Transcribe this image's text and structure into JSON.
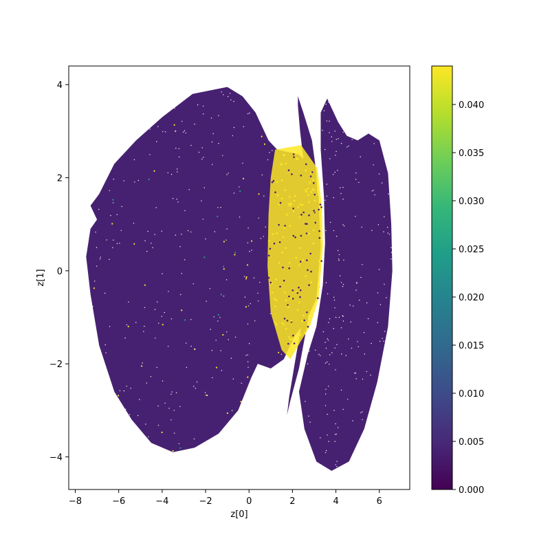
{
  "chart_data": {
    "type": "scatter",
    "title": "",
    "xlabel": "z[0]",
    "ylabel": "z[1]",
    "xlim": [
      -8.3,
      7.4
    ],
    "ylim": [
      -4.7,
      4.4
    ],
    "x_ticks": [
      -8,
      -6,
      -4,
      -2,
      0,
      2,
      4,
      6
    ],
    "y_ticks": [
      -4,
      -2,
      0,
      2,
      4
    ],
    "x_tick_labels": [
      "−8",
      "−6",
      "−4",
      "−2",
      "0",
      "2",
      "4",
      "6"
    ],
    "y_tick_labels": [
      "−4",
      "−2",
      "0",
      "2",
      "4"
    ],
    "grid": false,
    "colorbar": {
      "colormap": "viridis",
      "range": [
        0,
        0.044
      ],
      "ticks": [
        0,
        0.005,
        0.01,
        0.015,
        0.02,
        0.025,
        0.03,
        0.035,
        0.04
      ],
      "tick_labels": [
        "0.000",
        "0.005",
        "0.010",
        "0.015",
        "0.020",
        "0.025",
        "0.030",
        "0.035",
        "0.040"
      ]
    },
    "regions": [
      {
        "shape": "large-cluster",
        "color_value": 0.004,
        "outline": [
          [
            -6.9,
            1.65
          ],
          [
            -6.2,
            2.3
          ],
          [
            -5.2,
            2.8
          ],
          [
            -4.0,
            3.3
          ],
          [
            -2.6,
            3.8
          ],
          [
            -1.0,
            3.95
          ],
          [
            -0.3,
            3.75
          ],
          [
            0.3,
            3.4
          ],
          [
            0.9,
            2.8
          ],
          [
            1.3,
            2.6
          ],
          [
            2.3,
            2.5
          ],
          [
            2.9,
            2.2
          ],
          [
            3.2,
            1.6
          ],
          [
            3.3,
            0.5
          ],
          [
            3.1,
            -0.6
          ],
          [
            2.6,
            -1.1
          ],
          [
            2.1,
            -1.4
          ],
          [
            1.6,
            -1.9
          ],
          [
            1.0,
            -2.1
          ],
          [
            0.4,
            -2.0
          ],
          [
            0.1,
            -2.3
          ],
          [
            -0.5,
            -3.0
          ],
          [
            -1.4,
            -3.5
          ],
          [
            -2.5,
            -3.8
          ],
          [
            -3.5,
            -3.9
          ],
          [
            -4.5,
            -3.7
          ],
          [
            -5.4,
            -3.2
          ],
          [
            -6.2,
            -2.6
          ],
          [
            -6.9,
            -1.6
          ],
          [
            -7.3,
            -0.5
          ],
          [
            -7.5,
            0.3
          ],
          [
            -7.3,
            0.9
          ],
          [
            -7.0,
            1.1
          ],
          [
            -7.3,
            1.4
          ]
        ]
      },
      {
        "shape": "thin-sliver",
        "color_value": 0.004,
        "outline": [
          [
            2.25,
            3.75
          ],
          [
            2.5,
            3.4
          ],
          [
            2.9,
            2.8
          ],
          [
            3.1,
            2.1
          ],
          [
            3.2,
            1.2
          ],
          [
            3.0,
            0.0
          ],
          [
            2.7,
            -1.1
          ],
          [
            2.3,
            -2.1
          ],
          [
            1.9,
            -2.8
          ],
          [
            1.75,
            -3.1
          ],
          [
            1.85,
            -2.7
          ],
          [
            2.1,
            -2.0
          ],
          [
            2.4,
            -1.2
          ],
          [
            2.6,
            0.0
          ],
          [
            2.65,
            1.2
          ],
          [
            2.55,
            2.2
          ],
          [
            2.35,
            3.0
          ],
          [
            2.25,
            3.55
          ]
        ]
      },
      {
        "shape": "right-cluster",
        "color_value": 0.004,
        "outline": [
          [
            3.6,
            3.7
          ],
          [
            4.1,
            3.2
          ],
          [
            4.5,
            2.9
          ],
          [
            5.0,
            2.8
          ],
          [
            5.5,
            2.95
          ],
          [
            6.0,
            2.8
          ],
          [
            6.4,
            2.1
          ],
          [
            6.55,
            1.0
          ],
          [
            6.6,
            0.0
          ],
          [
            6.4,
            -1.2
          ],
          [
            5.9,
            -2.4
          ],
          [
            5.3,
            -3.4
          ],
          [
            4.6,
            -4.1
          ],
          [
            3.8,
            -4.3
          ],
          [
            3.1,
            -4.1
          ],
          [
            2.55,
            -3.4
          ],
          [
            2.3,
            -2.6
          ],
          [
            2.7,
            -1.8
          ],
          [
            3.1,
            -1.2
          ],
          [
            3.4,
            -0.3
          ],
          [
            3.5,
            0.6
          ],
          [
            3.45,
            1.6
          ],
          [
            3.3,
            2.6
          ],
          [
            3.3,
            3.4
          ]
        ]
      },
      {
        "shape": "yellow-band",
        "color_value": 0.044,
        "outline": [
          [
            1.2,
            2.6
          ],
          [
            2.4,
            2.7
          ],
          [
            3.15,
            2.2
          ],
          [
            3.35,
            1.4
          ],
          [
            3.4,
            0.5
          ],
          [
            3.2,
            -0.6
          ],
          [
            2.8,
            -1.2
          ],
          [
            2.4,
            -1.5
          ],
          [
            1.9,
            -1.9
          ],
          [
            1.5,
            -1.7
          ],
          [
            1.0,
            -0.9
          ],
          [
            0.85,
            0.1
          ],
          [
            0.9,
            1.2
          ],
          [
            1.0,
            2.0
          ]
        ]
      }
    ]
  }
}
